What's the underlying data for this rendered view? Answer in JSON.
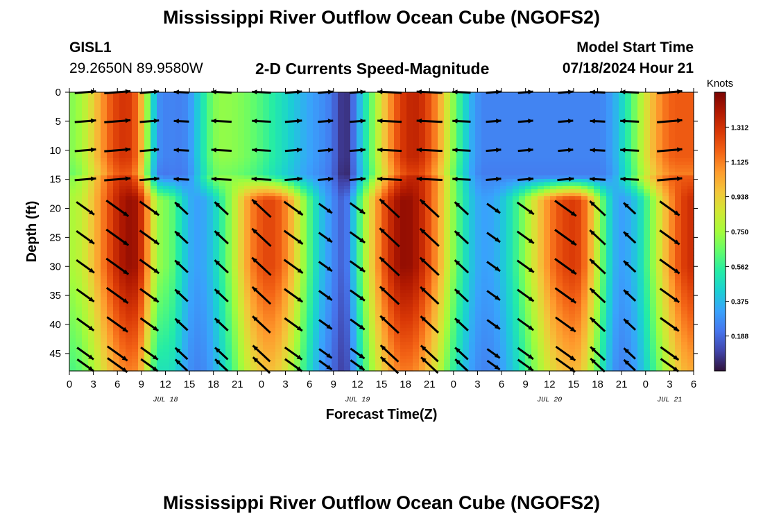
{
  "header": {
    "title": "Mississippi River Outflow Ocean Cube (NGOFS2)",
    "station": "GISL1",
    "coords": "29.2650N  89.9580W",
    "subtitle": "2-D Currents Speed-Magnitude",
    "model_label": "Model Start Time",
    "model_time": "07/18/2024 Hour 21"
  },
  "footer": {
    "title": "Mississippi River Outflow Ocean Cube (NGOFS2)"
  },
  "chart_data": {
    "type": "heatmap",
    "title": "2-D Currents Speed-Magnitude",
    "xlabel": "Forecast Time(Z)",
    "ylabel": "Depth (ft)",
    "xlim": [
      0,
      78
    ],
    "ylim": [
      0,
      48
    ],
    "y_inverted": true,
    "x_tick_values": [
      0,
      3,
      6,
      9,
      12,
      15,
      18,
      21,
      24,
      27,
      30,
      33,
      36,
      39,
      42,
      45,
      48,
      51,
      54,
      57,
      60,
      63,
      66,
      69,
      72,
      75,
      78
    ],
    "x_tick_labels": [
      "0",
      "3",
      "6",
      "9",
      "12",
      "15",
      "18",
      "21",
      "0",
      "3",
      "6",
      "9",
      "12",
      "15",
      "18",
      "21",
      "0",
      "3",
      "6",
      "9",
      "12",
      "15",
      "18",
      "21",
      "0",
      "3",
      "6"
    ],
    "y_tick_values": [
      0,
      5,
      10,
      15,
      20,
      25,
      30,
      35,
      40,
      45
    ],
    "y_tick_labels": [
      "0",
      "5",
      "10",
      "15",
      "20",
      "25",
      "30",
      "35",
      "40",
      "45"
    ],
    "date_labels": [
      {
        "hour": 12,
        "text": "JUL 18"
      },
      {
        "hour": 36,
        "text": "JUL 19"
      },
      {
        "hour": 60,
        "text": "JUL 20"
      },
      {
        "hour": 75,
        "text": "JUL 21"
      }
    ],
    "colorbar": {
      "label": "Knots",
      "min": 0.0,
      "max": 1.5,
      "ticks": [
        0.188,
        0.375,
        0.562,
        0.75,
        0.938,
        1.125,
        1.312
      ],
      "tick_labels": [
        "0.188",
        "0.375",
        "0.562",
        "0.750",
        "0.938",
        "1.125",
        "1.312"
      ]
    },
    "colormap": [
      "#30123b",
      "#4145ab",
      "#4675ed",
      "#39a2fc",
      "#1bcfd4",
      "#24eca6",
      "#61fc6c",
      "#a4fc3b",
      "#d1e834",
      "#f3c63a",
      "#fe9b2d",
      "#f36315",
      "#d93806",
      "#b11901",
      "#7a0403"
    ],
    "speed_field": {
      "description": "Current speed (knots) vs forecast hour and depth; two layers (surface 0-15 ft, bottom 18-48 ft)",
      "surface_peaks_hour": [
        7,
        19,
        43,
        76
      ],
      "surface_peak_knots": [
        1.3,
        0.72,
        1.35,
        1.2
      ],
      "surface_minima_hour": [
        14,
        34,
        52,
        66
      ],
      "bottom_peaks_hour": [
        8,
        25,
        42,
        63,
        78
      ],
      "bottom_peak_knots": [
        1.45,
        1.25,
        1.45,
        1.28,
        1.32
      ],
      "bottom_minima_hour": [
        16,
        33,
        52,
        69
      ],
      "min_knots": 0.04
    },
    "arrow_rows_depth": [
      0,
      5,
      10,
      15,
      20,
      25,
      30,
      35,
      40,
      45,
      47
    ],
    "arrow_columns_hour": [
      2,
      6,
      10,
      14,
      19,
      24,
      28,
      32,
      36,
      40,
      45,
      49,
      53,
      57,
      62,
      66,
      70,
      75
    ]
  }
}
